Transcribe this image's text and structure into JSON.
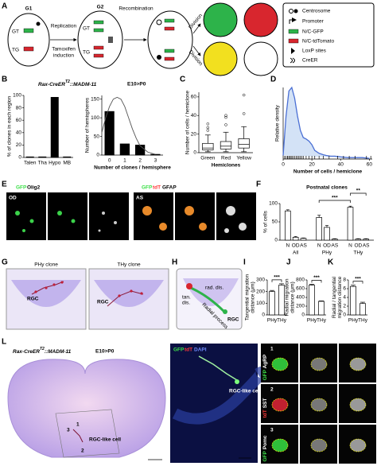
{
  "letters": [
    "A",
    "B",
    "C",
    "D",
    "E",
    "F",
    "G",
    "H",
    "I",
    "J",
    "K",
    "L"
  ],
  "a": {
    "g1": "G1",
    "g2": "G2",
    "replication": "Replication",
    "recombination": "Recombination",
    "tamoxifen": [
      "Tamoxifen",
      "induction"
    ],
    "division": [
      "Division",
      "Division"
    ],
    "g1_cells": [
      "GT",
      "TG"
    ],
    "g2_cells": [
      "GT",
      "TG"
    ],
    "legend": [
      "Centrosome",
      "Promoter",
      "N/C-GFP",
      "N/C-tdTomato",
      "LoxP sites",
      "CreER"
    ]
  },
  "b": {
    "genotype": "Rax-CreER",
    "superscript": "T2",
    "genotype_rest": "::MADM-11",
    "stage": "E10>P0"
  },
  "e": {
    "od": "OD",
    "as": "AS",
    "od_stains": [
      "GFP",
      "Olig2"
    ],
    "as_stains": [
      "GFP",
      "tdT",
      "GFAP"
    ]
  },
  "g": {
    "phy": "PHy clone",
    "thy": "THy clone",
    "rgc": [
      "RGC",
      "RGC"
    ]
  },
  "h": {
    "tan": "tan.",
    "dis": "dis.",
    "rad": "rad. dis.",
    "radial_process": "Radial process",
    "rgc": "RGC"
  },
  "l": {
    "genotype": "Rax-CreER",
    "superscript": "T2",
    "genotype_rest": "::MADM-11",
    "stage": "E10>P0",
    "clone_numbers": [
      "3",
      "1",
      "2"
    ],
    "rgc_like": "RGC-like cell",
    "image_stains": [
      "GFP",
      "tdT",
      "DAPI"
    ],
    "image_label": "RGC-like cell",
    "rows": [
      {
        "number": "1",
        "stains": [
          "GFP",
          "AgRP"
        ]
      },
      {
        "number": "2",
        "stains": [
          "tdT",
          "SST"
        ]
      },
      {
        "number": "3",
        "stains": [
          "GFP",
          "Pomc"
        ]
      }
    ]
  },
  "chart_data": [
    {
      "type": "bar",
      "categories": [
        "Talen",
        "Tha",
        "Hypo",
        "MB"
      ],
      "values": [
        1,
        1,
        97,
        1
      ],
      "ylabel": "% of clones in each region",
      "ylim": [
        0,
        100
      ],
      "yticks": [
        0,
        20,
        40,
        60,
        80,
        100
      ],
      "color": "#000000"
    },
    {
      "type": "bar",
      "categories": [
        "0",
        "1",
        "2",
        "3"
      ],
      "values": [
        117,
        30,
        27,
        2
      ],
      "ylabel": "Number of hemispheres",
      "xlabel": "Number of clones / hemisphere",
      "ylim": [
        0,
        160
      ],
      "yticks": [
        0,
        50,
        100,
        150
      ],
      "color": "#000000",
      "fit": {
        "x": [
          -0.5,
          -0.25,
          0,
          0.25,
          0.5,
          0.75,
          1,
          1.25,
          1.5,
          1.75,
          2,
          2.5,
          3
        ],
        "values": [
          60,
          100,
          130,
          150,
          155,
          150,
          130,
          100,
          70,
          45,
          25,
          8,
          2
        ]
      }
    },
    {
      "type": "box",
      "categories": [
        "Green",
        "Red",
        "Yellow"
      ],
      "xlabel": "Hemiclones",
      "ylabel": "Number of cells / hemiclone",
      "ylim": [
        0,
        65
      ],
      "yticks": [
        0,
        20,
        40,
        60
      ],
      "color": "#ffffff",
      "boxes": [
        {
          "min": 1,
          "q1": 3,
          "median": 5,
          "q3": 10,
          "max": 19,
          "outliers": [
            24,
            27,
            31
          ]
        },
        {
          "min": 1,
          "q1": 4,
          "median": 7,
          "q3": 12,
          "max": 22,
          "outliers": [
            30,
            38,
            40
          ]
        },
        {
          "min": 1,
          "q1": 5,
          "median": 9,
          "q3": 15,
          "max": 28,
          "outliers": [
            42,
            62
          ]
        }
      ]
    },
    {
      "type": "line",
      "xlabel": "Number of cells / hemiclone",
      "ylabel": "Relative density",
      "xlim": [
        0,
        62
      ],
      "xticks": [
        0,
        20,
        40,
        60
      ],
      "ylim": [
        0,
        1
      ],
      "color": "#4a6fd4",
      "fill": "#d3e2f6",
      "x": [
        0,
        2,
        4,
        6,
        8,
        10,
        12,
        14,
        16,
        18,
        20,
        22,
        25,
        28,
        30,
        33,
        36,
        40,
        45,
        50,
        55,
        60
      ],
      "values": [
        0.05,
        0.6,
        0.95,
        1.0,
        0.85,
        0.6,
        0.4,
        0.3,
        0.28,
        0.25,
        0.2,
        0.12,
        0.08,
        0.06,
        0.05,
        0.04,
        0.04,
        0.03,
        0.02,
        0.02,
        0.02,
        0.01
      ],
      "rug": [
        1,
        2,
        3,
        3,
        4,
        4,
        5,
        5,
        6,
        6,
        7,
        8,
        9,
        10,
        11,
        12,
        13,
        14,
        16,
        18,
        20,
        22,
        25,
        28,
        32,
        38,
        42,
        46,
        50,
        58,
        61
      ]
    },
    {
      "type": "grouped_bar",
      "title": "Postnatal clones",
      "ylabel": "% of cells",
      "ylim": [
        0,
        100
      ],
      "yticks": [
        0,
        50,
        100
      ],
      "categories": [
        "N",
        "OD",
        "AS"
      ],
      "color": "#ffffff",
      "groups": [
        {
          "name": "All",
          "values": [
            80,
            8,
            5
          ],
          "errors": [
            3,
            2,
            1
          ]
        },
        {
          "name": "PHy",
          "values": [
            62,
            35,
            3
          ],
          "errors": [
            6,
            5,
            1
          ]
        },
        {
          "name": "THy",
          "values": [
            90,
            3,
            3
          ],
          "errors": [
            3,
            1,
            1
          ]
        }
      ],
      "annotations": [
        "***",
        "**"
      ]
    },
    {
      "type": "bar",
      "categories": [
        "PHy",
        "THy"
      ],
      "values": [
        200,
        255
      ],
      "errors": [
        10,
        12
      ],
      "ylabel": [
        "Tangential migration",
        "distance (μm)"
      ],
      "ylim": [
        0,
        300
      ],
      "yticks": [
        0,
        100,
        200,
        300
      ],
      "annotation": "***",
      "color": "#ffffff"
    },
    {
      "type": "bar",
      "categories": [
        "PHy",
        "THy"
      ],
      "values": [
        680,
        310
      ],
      "errors": [
        20,
        10
      ],
      "ylabel": [
        "Radial migration",
        "distance (μm)"
      ],
      "ylim": [
        0,
        800
      ],
      "yticks": [
        0,
        200,
        400,
        600,
        800
      ],
      "annotation": "***",
      "color": "#ffffff"
    },
    {
      "type": "bar",
      "categories": [
        "PHy",
        "THy"
      ],
      "values": [
        6.5,
        2.6
      ],
      "errors": [
        0.3,
        0.3
      ],
      "ylabel": [
        "Radial / tangential",
        "migration distance"
      ],
      "ylim": [
        0,
        8
      ],
      "yticks": [
        0,
        2,
        4,
        6,
        8
      ],
      "annotation": "***",
      "color": "#ffffff"
    }
  ]
}
